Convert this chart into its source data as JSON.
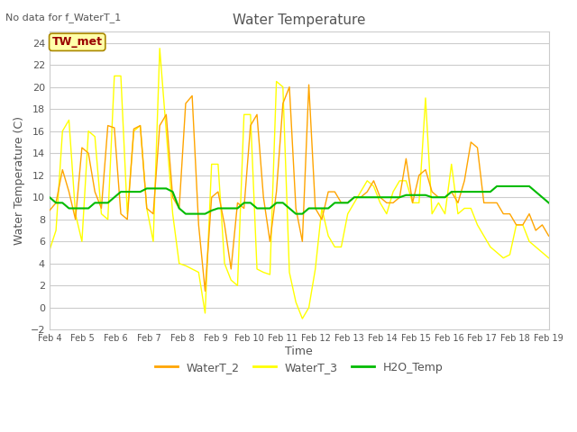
{
  "title": "Water Temperature",
  "xlabel": "Time",
  "ylabel": "Water Temperature (C)",
  "note": "No data for f_WaterT_1",
  "legend_label": "TW_met",
  "ylim": [
    -2,
    25
  ],
  "yticks": [
    -2,
    0,
    2,
    4,
    6,
    8,
    10,
    12,
    14,
    16,
    18,
    20,
    22,
    24
  ],
  "x_labels": [
    "Feb 4",
    "Feb 5",
    "Feb 6",
    "Feb 7",
    "Feb 8",
    "Feb 9",
    "Feb 10",
    "Feb 11",
    "Feb 12",
    "Feb 13",
    "Feb 14",
    "Feb 15",
    "Feb 16",
    "Feb 17",
    "Feb 18",
    "Feb 19"
  ],
  "waterT2_color": "#FFA500",
  "waterT3_color": "#FFFF00",
  "h2o_color": "#00BB00",
  "fig_bg": "#FFFFFF",
  "plot_bg": "#FFFFFF",
  "grid_color": "#CCCCCC",
  "waterT2": [
    8.8,
    9.5,
    12.5,
    10.5,
    8.0,
    14.5,
    14.0,
    10.5,
    9.0,
    16.5,
    16.3,
    8.5,
    8.0,
    16.2,
    16.5,
    9.0,
    8.5,
    16.5,
    17.5,
    10.0,
    9.0,
    18.5,
    19.2,
    7.5,
    1.5,
    10.0,
    10.5,
    7.5,
    3.5,
    9.5,
    9.0,
    16.5,
    17.5,
    10.0,
    6.0,
    10.5,
    18.5,
    20.0,
    9.0,
    6.0,
    20.2,
    9.0,
    8.0,
    10.5,
    10.5,
    9.5,
    9.5,
    10.0,
    10.0,
    10.5,
    11.5,
    10.0,
    9.5,
    9.5,
    10.0,
    13.5,
    9.5,
    12.0,
    12.5,
    10.5,
    10.0,
    10.0,
    10.5,
    9.5,
    11.5,
    15.0,
    14.5,
    9.5,
    9.5,
    9.5,
    8.5,
    8.5,
    7.5,
    7.5,
    8.5,
    7.0,
    7.5,
    6.5
  ],
  "waterT3": [
    5.2,
    7.0,
    16.0,
    17.0,
    8.5,
    6.0,
    16.0,
    15.5,
    8.5,
    8.0,
    21.0,
    21.0,
    8.5,
    16.0,
    16.5,
    9.0,
    6.0,
    23.5,
    16.0,
    8.5,
    4.0,
    3.8,
    3.5,
    3.2,
    -0.5,
    13.0,
    13.0,
    4.0,
    2.5,
    2.0,
    17.5,
    17.5,
    3.5,
    3.2,
    3.0,
    20.5,
    20.0,
    3.2,
    0.5,
    -1.0,
    0.0,
    3.5,
    9.0,
    6.5,
    5.5,
    5.5,
    8.5,
    9.5,
    10.5,
    11.5,
    11.0,
    9.5,
    8.5,
    10.5,
    11.5,
    11.5,
    9.5,
    9.5,
    19.0,
    8.5,
    9.5,
    8.5,
    13.0,
    8.5,
    9.0,
    9.0,
    7.5,
    6.5,
    5.5,
    5.0,
    4.5,
    4.8,
    7.5,
    7.5,
    6.0,
    5.5,
    5.0,
    4.5
  ],
  "h2o_temp": [
    10.0,
    9.5,
    9.5,
    9.0,
    9.0,
    9.0,
    9.0,
    9.5,
    9.5,
    9.5,
    10.0,
    10.5,
    10.5,
    10.5,
    10.5,
    10.8,
    10.8,
    10.8,
    10.8,
    10.5,
    9.0,
    8.5,
    8.5,
    8.5,
    8.5,
    8.8,
    9.0,
    9.0,
    9.0,
    9.0,
    9.5,
    9.5,
    9.0,
    9.0,
    9.0,
    9.5,
    9.5,
    9.0,
    8.5,
    8.5,
    9.0,
    9.0,
    9.0,
    9.0,
    9.5,
    9.5,
    9.5,
    10.0,
    10.0,
    10.0,
    10.0,
    10.0,
    10.0,
    10.0,
    10.0,
    10.2,
    10.2,
    10.2,
    10.2,
    10.0,
    10.0,
    10.0,
    10.5,
    10.5,
    10.5,
    10.5,
    10.5,
    10.5,
    10.5,
    11.0,
    11.0,
    11.0,
    11.0,
    11.0,
    11.0,
    10.5,
    10.0,
    9.5
  ]
}
